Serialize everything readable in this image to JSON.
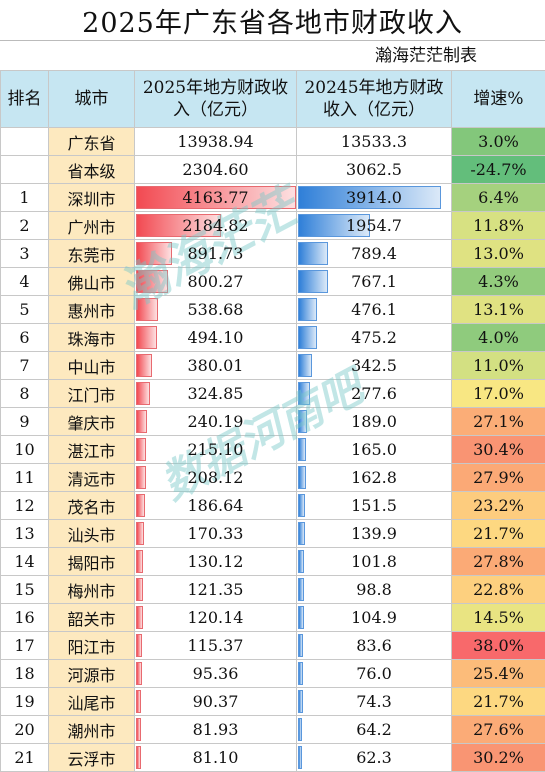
{
  "title": "2025年广东省各地市财政收入",
  "credit": "瀚海茫茫制表",
  "watermark": [
    "瀚海茫茫",
    "数据河南吧"
  ],
  "headers": {
    "rank": "排名",
    "city": "城市",
    "y2025": "2025年地方财政收入（亿元）",
    "y2024": "20245年地方财政收入（亿元）",
    "growth": "增速%"
  },
  "bar_max": 4163.77,
  "rows": [
    {
      "rank": "",
      "city": "广东省",
      "v2025": "13938.94",
      "v2024": "13533.3",
      "growth": "3.0%",
      "growth_num": 3.0,
      "bar": false,
      "color": "#83c77b"
    },
    {
      "rank": "",
      "city": "省本级",
      "v2025": "2304.60",
      "v2024": "3062.5",
      "growth": "-24.7%",
      "growth_num": -24.7,
      "bar": false,
      "color": "#63be7b"
    },
    {
      "rank": "1",
      "city": "深圳市",
      "v2025": "4163.77",
      "v2024": "3914.0",
      "growth": "6.4%",
      "growth_num": 6.4,
      "bar": true,
      "color": "#a5d17e"
    },
    {
      "rank": "2",
      "city": "广州市",
      "v2025": "2184.82",
      "v2024": "1954.7",
      "growth": "11.8%",
      "growth_num": 11.8,
      "bar": true,
      "color": "#d7e182"
    },
    {
      "rank": "3",
      "city": "东莞市",
      "v2025": "891.73",
      "v2024": "789.4",
      "growth": "13.0%",
      "growth_num": 13.0,
      "bar": true,
      "color": "#dfe282"
    },
    {
      "rank": "4",
      "city": "佛山市",
      "v2025": "800.27",
      "v2024": "767.1",
      "growth": "4.3%",
      "growth_num": 4.3,
      "bar": true,
      "color": "#93cc7d"
    },
    {
      "rank": "5",
      "city": "惠州市",
      "v2025": "538.68",
      "v2024": "476.1",
      "growth": "13.1%",
      "growth_num": 13.1,
      "bar": true,
      "color": "#e0e282"
    },
    {
      "rank": "6",
      "city": "珠海市",
      "v2025": "494.10",
      "v2024": "475.2",
      "growth": "4.0%",
      "growth_num": 4.0,
      "bar": true,
      "color": "#8fcb7d"
    },
    {
      "rank": "7",
      "city": "中山市",
      "v2025": "380.01",
      "v2024": "342.5",
      "growth": "11.0%",
      "growth_num": 11.0,
      "bar": true,
      "color": "#d3e082"
    },
    {
      "rank": "8",
      "city": "江门市",
      "v2025": "324.85",
      "v2024": "277.6",
      "growth": "17.0%",
      "growth_num": 17.0,
      "bar": true,
      "color": "#f8e783"
    },
    {
      "rank": "9",
      "city": "肇庆市",
      "v2025": "240.19",
      "v2024": "189.0",
      "growth": "27.1%",
      "growth_num": 27.1,
      "bar": true,
      "color": "#fbad77"
    },
    {
      "rank": "10",
      "city": "湛江市",
      "v2025": "215.10",
      "v2024": "165.0",
      "growth": "30.4%",
      "growth_num": 30.4,
      "bar": true,
      "color": "#f99473"
    },
    {
      "rank": "11",
      "city": "清远市",
      "v2025": "208.12",
      "v2024": "162.8",
      "growth": "27.9%",
      "growth_num": 27.9,
      "bar": true,
      "color": "#fba976"
    },
    {
      "rank": "12",
      "city": "茂名市",
      "v2025": "186.64",
      "v2024": "151.5",
      "growth": "23.2%",
      "growth_num": 23.2,
      "bar": true,
      "color": "#fdcc7e"
    },
    {
      "rank": "13",
      "city": "汕头市",
      "v2025": "170.33",
      "v2024": "139.9",
      "growth": "21.7%",
      "growth_num": 21.7,
      "bar": true,
      "color": "#fdd881"
    },
    {
      "rank": "14",
      "city": "揭阳市",
      "v2025": "130.12",
      "v2024": "101.8",
      "growth": "27.8%",
      "growth_num": 27.8,
      "bar": true,
      "color": "#fbaa76"
    },
    {
      "rank": "15",
      "city": "梅州市",
      "v2025": "121.35",
      "v2024": "98.8",
      "growth": "22.8%",
      "growth_num": 22.8,
      "bar": true,
      "color": "#fdd07f"
    },
    {
      "rank": "16",
      "city": "韶关市",
      "v2025": "120.14",
      "v2024": "104.9",
      "growth": "14.5%",
      "growth_num": 14.5,
      "bar": true,
      "color": "#e9e482"
    },
    {
      "rank": "17",
      "city": "阳江市",
      "v2025": "115.37",
      "v2024": "83.6",
      "growth": "38.0%",
      "growth_num": 38.0,
      "bar": true,
      "color": "#f8696b"
    },
    {
      "rank": "18",
      "city": "河源市",
      "v2025": "95.36",
      "v2024": "76.0",
      "growth": "25.4%",
      "growth_num": 25.4,
      "bar": true,
      "color": "#fcbc7a"
    },
    {
      "rank": "19",
      "city": "汕尾市",
      "v2025": "90.37",
      "v2024": "74.3",
      "growth": "21.7%",
      "growth_num": 21.7,
      "bar": true,
      "color": "#fdd881"
    },
    {
      "rank": "20",
      "city": "潮州市",
      "v2025": "81.93",
      "v2024": "64.2",
      "growth": "27.6%",
      "growth_num": 27.6,
      "bar": true,
      "color": "#fbab77"
    },
    {
      "rank": "21",
      "city": "云浮市",
      "v2025": "81.10",
      "v2024": "62.3",
      "growth": "30.2%",
      "growth_num": 30.2,
      "bar": true,
      "color": "#f99573"
    }
  ]
}
